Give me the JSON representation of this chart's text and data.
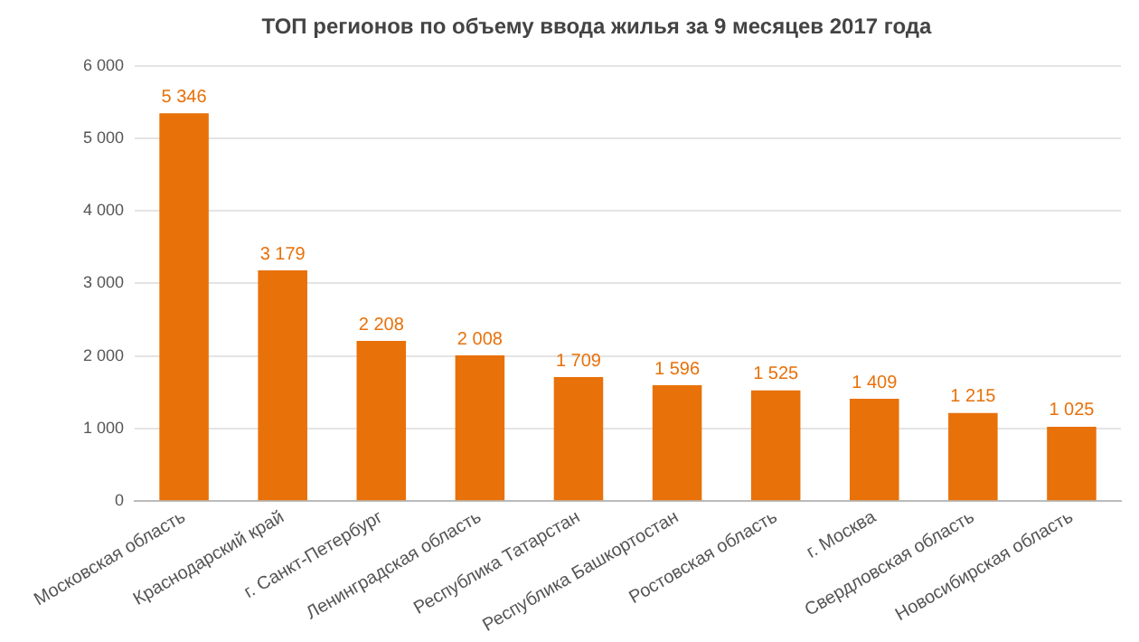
{
  "chart_data": {
    "type": "bar",
    "title": "ТОП регионов по объему ввода жилья за 9 месяцев 2017 года",
    "categories": [
      "Московская область",
      "Краснодарский край",
      "г. Санкт-Петербург",
      "Ленинградская область",
      "Республика Татарстан",
      "Республика Башкортостан",
      "Ростовская область",
      "г. Москва",
      "Свердловская область",
      "Новосибирская область"
    ],
    "values": [
      5346,
      3179,
      2208,
      2008,
      1709,
      1596,
      1525,
      1409,
      1215,
      1025
    ],
    "value_labels": [
      "5 346",
      "3 179",
      "2 208",
      "2 008",
      "1 709",
      "1 596",
      "1 525",
      "1 409",
      "1 215",
      "1 025"
    ],
    "color": "#e8710a",
    "ylim": [
      0,
      6000
    ],
    "yticks": [
      {
        "value": 0,
        "label": "0"
      },
      {
        "value": 1000,
        "label": "1 000"
      },
      {
        "value": 2000,
        "label": "2 000"
      },
      {
        "value": 3000,
        "label": "3 000"
      },
      {
        "value": 4000,
        "label": "4 000"
      },
      {
        "value": 5000,
        "label": "5 000"
      },
      {
        "value": 6000,
        "label": "6 000"
      }
    ],
    "grid": "y"
  }
}
